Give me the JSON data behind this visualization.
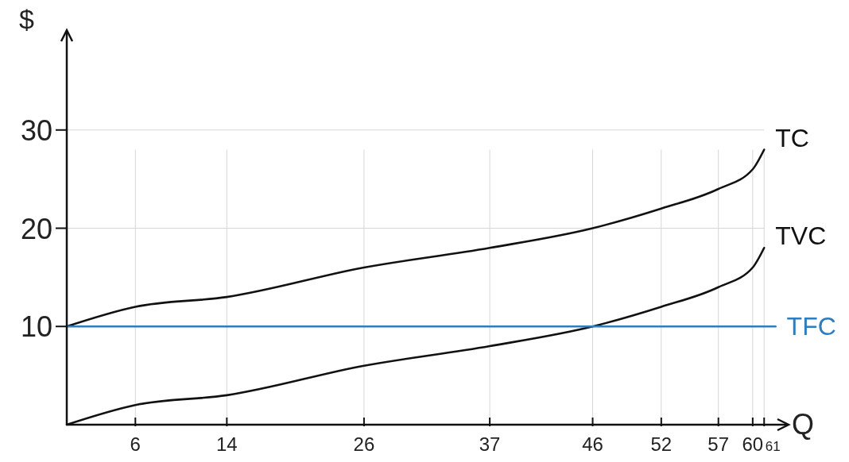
{
  "chart_data": {
    "type": "line",
    "xlabel": "Q",
    "ylabel": "$",
    "xlim": [
      0,
      63
    ],
    "ylim": [
      0,
      40
    ],
    "xticks": [
      6,
      14,
      26,
      37,
      46,
      52,
      57,
      60,
      61
    ],
    "yticks": [
      10,
      20,
      30
    ],
    "grid": true,
    "marker": "none",
    "line_style": "solid",
    "series": [
      {
        "name": "TC",
        "color": "#111111",
        "x": [
          0,
          6,
          14,
          26,
          37,
          46,
          52,
          57,
          60,
          61
        ],
        "values": [
          10,
          12,
          13,
          16,
          18,
          20,
          22,
          24,
          26,
          28
        ]
      },
      {
        "name": "TVC",
        "color": "#111111",
        "x": [
          0,
          6,
          14,
          26,
          37,
          46,
          52,
          57,
          60,
          61
        ],
        "values": [
          0,
          2,
          3,
          6,
          8,
          10,
          12,
          14,
          16,
          18
        ]
      },
      {
        "name": "TFC",
        "color": "#2e7dbf",
        "x": [
          0,
          62
        ],
        "values": [
          10,
          10
        ]
      }
    ]
  }
}
